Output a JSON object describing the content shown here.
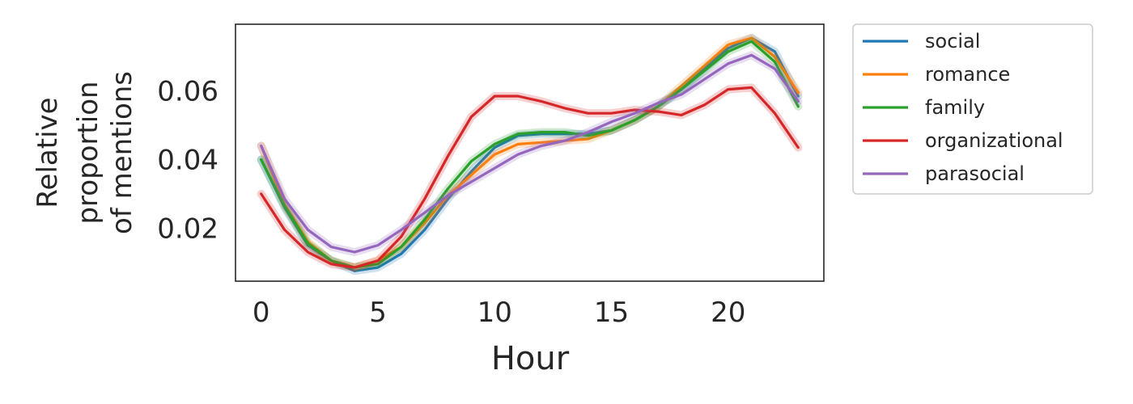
{
  "chart_data": {
    "type": "line",
    "xlabel": "Hour",
    "ylabel_lines": [
      "Relative",
      "proportion",
      "of mentions"
    ],
    "xlim": [
      -1.1,
      24.1
    ],
    "ylim": [
      0.0045,
      0.0795
    ],
    "xticks": [
      0,
      5,
      10,
      15,
      20
    ],
    "xtick_labels": [
      "0",
      "5",
      "10",
      "15",
      "20"
    ],
    "yticks": [
      0.02,
      0.04,
      0.06
    ],
    "ytick_labels": [
      "0.02",
      "0.04",
      "0.06"
    ],
    "grid": false,
    "legend_placement": "outside-top-right",
    "x": [
      0,
      1,
      2,
      3,
      4,
      5,
      6,
      7,
      8,
      9,
      10,
      11,
      12,
      13,
      14,
      15,
      16,
      17,
      18,
      19,
      20,
      21,
      22,
      23
    ],
    "series": [
      {
        "name": "social",
        "color": "#1f77b4",
        "values": [
          0.04,
          0.026,
          0.015,
          0.0105,
          0.0075,
          0.0085,
          0.0125,
          0.0195,
          0.0285,
          0.0365,
          0.0435,
          0.047,
          0.0475,
          0.0475,
          0.0475,
          0.0485,
          0.0515,
          0.0555,
          0.0605,
          0.0665,
          0.0725,
          0.0755,
          0.0715,
          0.0585
        ]
      },
      {
        "name": "romance",
        "color": "#ff7f0e",
        "values": [
          0.044,
          0.027,
          0.016,
          0.0105,
          0.0085,
          0.0105,
          0.0145,
          0.0215,
          0.0295,
          0.0355,
          0.0415,
          0.0445,
          0.045,
          0.0455,
          0.046,
          0.0485,
          0.0515,
          0.0555,
          0.0615,
          0.0675,
          0.0735,
          0.0755,
          0.07,
          0.0595
        ]
      },
      {
        "name": "family",
        "color": "#2ca02c",
        "values": [
          0.04,
          0.0265,
          0.0155,
          0.0105,
          0.0085,
          0.0095,
          0.0145,
          0.0225,
          0.0315,
          0.0395,
          0.0445,
          0.0475,
          0.048,
          0.048,
          0.047,
          0.0485,
          0.0515,
          0.0555,
          0.0605,
          0.066,
          0.0715,
          0.0745,
          0.0685,
          0.0555
        ]
      },
      {
        "name": "organizational",
        "color": "#d62728",
        "values": [
          0.03,
          0.0195,
          0.013,
          0.0095,
          0.0085,
          0.0105,
          0.0175,
          0.0285,
          0.041,
          0.0525,
          0.0585,
          0.0585,
          0.057,
          0.055,
          0.0535,
          0.0535,
          0.0545,
          0.054,
          0.053,
          0.056,
          0.0605,
          0.061,
          0.0535,
          0.0435
        ]
      },
      {
        "name": "parasocial",
        "color": "#9467bd",
        "values": [
          0.044,
          0.0285,
          0.0195,
          0.0145,
          0.013,
          0.015,
          0.0195,
          0.0245,
          0.0295,
          0.0335,
          0.0375,
          0.0415,
          0.044,
          0.0455,
          0.048,
          0.051,
          0.0535,
          0.0565,
          0.059,
          0.0635,
          0.068,
          0.0705,
          0.0665,
          0.057
        ]
      }
    ]
  }
}
